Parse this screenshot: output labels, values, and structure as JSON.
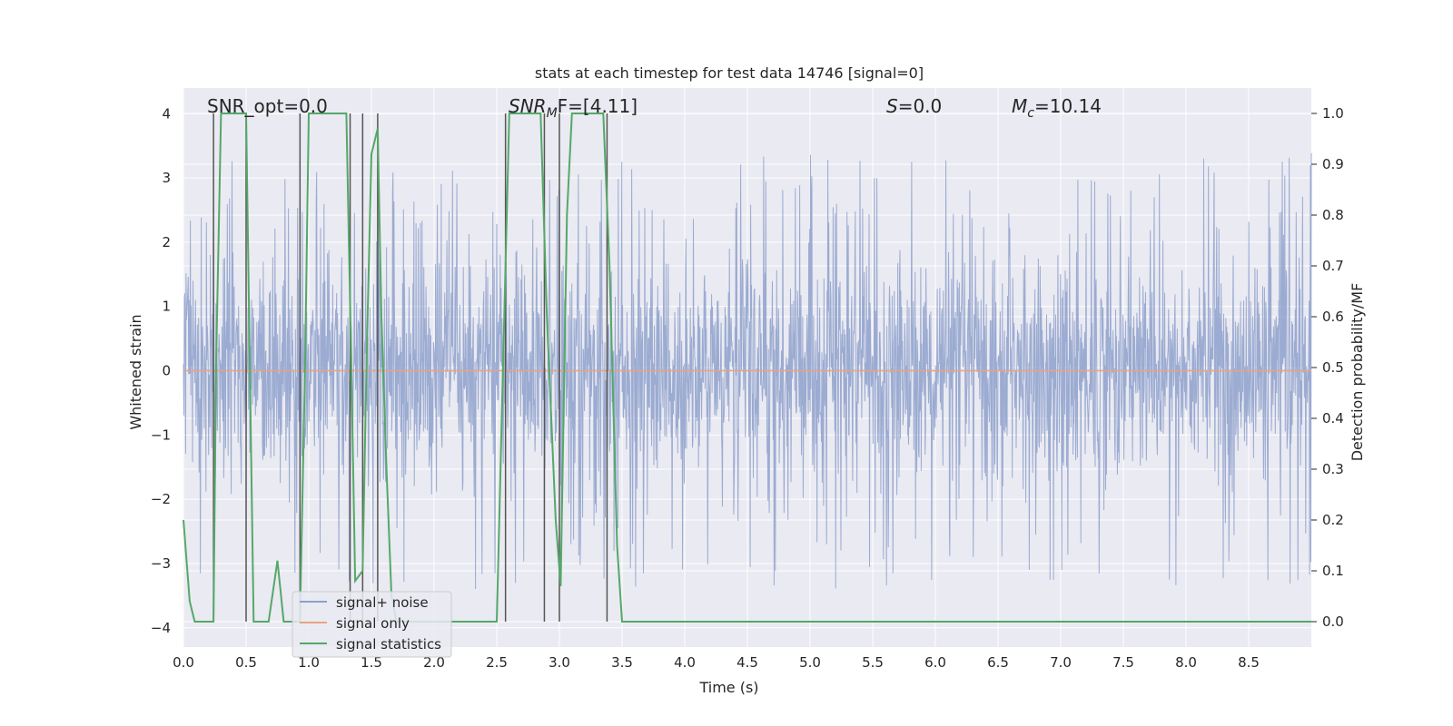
{
  "chart_data": {
    "type": "line",
    "title": "stats at each timestep for test data 14746 [signal=0]",
    "xlabel": "Time (s)",
    "ylabel": "Whitened strain",
    "y2label": "Detection probability/MF",
    "xlim": [
      0.0,
      9.0
    ],
    "ylim": [
      -4.3,
      4.4
    ],
    "y2lim": [
      -0.05,
      1.05
    ],
    "xticks": [
      "0.0",
      "0.5",
      "1.0",
      "1.5",
      "2.0",
      "2.5",
      "3.0",
      "3.5",
      "4.0",
      "4.5",
      "5.0",
      "5.5",
      "6.0",
      "6.5",
      "7.0",
      "7.5",
      "8.0",
      "8.5"
    ],
    "yticks": [
      "4",
      "3",
      "2",
      "1",
      "0",
      "−1",
      "−2",
      "−3",
      "−4"
    ],
    "y2ticks": [
      "1.0",
      "0.9",
      "0.8",
      "0.7",
      "0.6",
      "0.5",
      "0.4",
      "0.3",
      "0.2",
      "0.1",
      "0.0"
    ],
    "grid": true,
    "legend_position": "lower-left",
    "annotations": {
      "snr_opt": "SNR_opt=0.0",
      "snr_mf_italic": "SNR",
      "snr_mf_sub": "M",
      "snr_mf_tail": "F=[4.11]",
      "s_italic": "S",
      "s_value": "=0.0",
      "mc_italic": "M",
      "mc_sub": "c",
      "mc_value": "=10.14"
    },
    "series": [
      {
        "name": "signal+ noise",
        "color": "#8da0cb",
        "style": "dense noisy trace, roughly ±1.5 with spikes to about ±3.3"
      },
      {
        "name": "signal only",
        "color": "#e8a381",
        "values_constant": 0.0
      },
      {
        "name": "signal statistics",
        "color": "#55a868",
        "axis": "right",
        "points": [
          [
            0.0,
            0.2
          ],
          [
            0.05,
            0.04
          ],
          [
            0.09,
            0.0
          ],
          [
            0.24,
            0.0
          ],
          [
            0.26,
            0.5
          ],
          [
            0.3,
            1.0
          ],
          [
            0.5,
            1.0
          ],
          [
            0.53,
            0.5
          ],
          [
            0.56,
            0.0
          ],
          [
            0.63,
            0.0
          ],
          [
            0.68,
            0.0
          ],
          [
            0.75,
            0.12
          ],
          [
            0.8,
            0.0
          ],
          [
            0.93,
            0.0
          ],
          [
            0.97,
            0.5
          ],
          [
            1.0,
            1.0
          ],
          [
            1.3,
            1.0
          ],
          [
            1.34,
            0.5
          ],
          [
            1.37,
            0.08
          ],
          [
            1.43,
            0.1
          ],
          [
            1.46,
            0.5
          ],
          [
            1.5,
            0.92
          ],
          [
            1.55,
            0.97
          ],
          [
            1.58,
            0.6
          ],
          [
            1.62,
            0.3
          ],
          [
            1.66,
            0.05
          ],
          [
            1.7,
            0.0
          ],
          [
            2.5,
            0.0
          ],
          [
            2.52,
            0.2
          ],
          [
            2.55,
            0.5
          ],
          [
            2.6,
            1.0
          ],
          [
            2.85,
            1.0
          ],
          [
            2.9,
            0.6
          ],
          [
            2.97,
            0.2
          ],
          [
            3.01,
            0.07
          ],
          [
            3.06,
            0.8
          ],
          [
            3.1,
            1.0
          ],
          [
            3.35,
            1.0
          ],
          [
            3.4,
            0.7
          ],
          [
            3.46,
            0.15
          ],
          [
            3.5,
            0.0
          ],
          [
            9.0,
            0.0
          ]
        ]
      },
      {
        "name": "",
        "color": "#555555",
        "role": "vertical markers",
        "x_values": [
          0.24,
          0.5,
          0.93,
          1.33,
          1.43,
          1.55,
          2.57,
          2.88,
          3.0,
          3.38
        ]
      }
    ],
    "legend": [
      "signal+ noise",
      "signal only",
      "signal statistics"
    ]
  }
}
